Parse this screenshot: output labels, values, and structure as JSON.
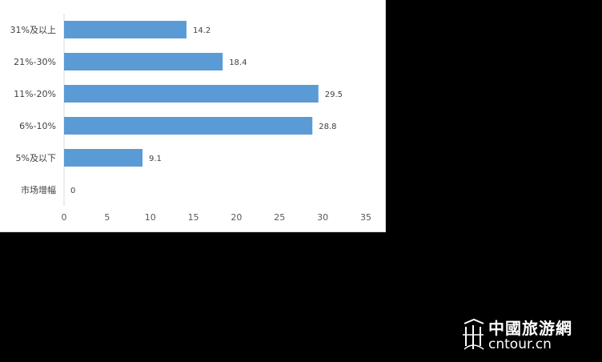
{
  "chart_data": {
    "type": "bar",
    "orientation": "horizontal",
    "categories": [
      "31%及以上",
      "21%-30%",
      "11%-20%",
      "6%-10%",
      "5%及以下",
      "市场增幅"
    ],
    "values": [
      14.2,
      18.4,
      29.5,
      28.8,
      9.1,
      0
    ],
    "value_labels": [
      "14.2",
      "18.4",
      "29.5",
      "28.8",
      "9.1",
      "0"
    ],
    "xlim": [
      0,
      35
    ],
    "xticks": [
      0,
      5,
      10,
      15,
      20,
      25,
      30,
      35
    ],
    "xtick_labels": [
      "0",
      "5",
      "10",
      "15",
      "20",
      "25",
      "30",
      "35"
    ],
    "grid": false,
    "bar_color": "#5b9bd5"
  },
  "watermark": {
    "name_cn": "中國旅游網",
    "name_en": "cntour.cn",
    "icon": "cntour-logo-icon"
  }
}
